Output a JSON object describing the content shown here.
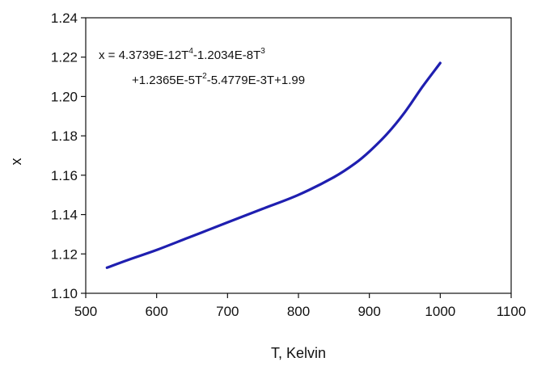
{
  "chart_data": {
    "type": "line",
    "title": "",
    "xlabel": "T, Kelvin",
    "ylabel": "x",
    "xlim": [
      500,
      1100
    ],
    "ylim": [
      1.1,
      1.24
    ],
    "xticks": [
      "500",
      "600",
      "700",
      "800",
      "900",
      "1000",
      "1100"
    ],
    "yticks": [
      "1.10",
      "1.12",
      "1.14",
      "1.16",
      "1.18",
      "1.20",
      "1.22",
      "1.24"
    ],
    "grid": false,
    "legend": "none",
    "line_color": "#1f1fb0",
    "annotation": {
      "line1_prefix": "x  =  4.3739E-12T",
      "line1_sup1": "4",
      "line1_mid": "-1.2034E-8T",
      "line1_sup2": "3",
      "line2_prefix": "+1.2365E-5T",
      "line2_sup": "2",
      "line2_suffix": "-5.4779E-3T+1.99"
    },
    "series": [
      {
        "x": [
          530,
          560,
          600,
          650,
          700,
          750,
          800,
          850,
          880,
          900,
          925,
          950,
          975,
          1000
        ],
        "y": [
          1.113,
          1.117,
          1.122,
          1.129,
          1.136,
          1.143,
          1.15,
          1.159,
          1.166,
          1.172,
          1.181,
          1.192,
          1.205,
          1.217
        ]
      }
    ]
  }
}
